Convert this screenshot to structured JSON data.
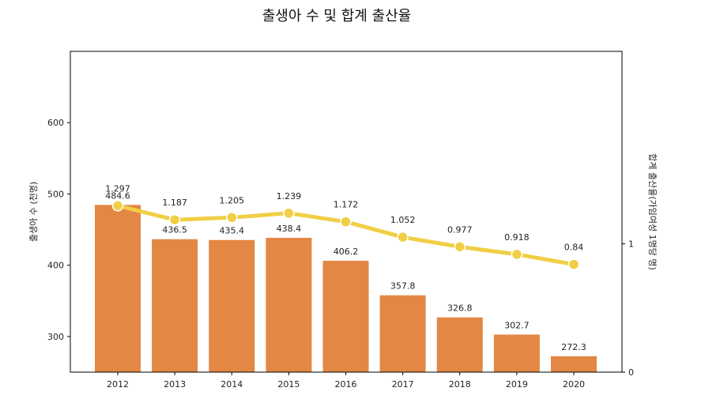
{
  "chart_data": {
    "type": "bar+line",
    "title": "출생아 수 및 합계 출산율",
    "categories": [
      "2012",
      "2013",
      "2014",
      "2015",
      "2016",
      "2017",
      "2018",
      "2019",
      "2020"
    ],
    "series": [
      {
        "name": "출생아 수",
        "type": "bar",
        "axis": "left",
        "values": [
          484.6,
          436.5,
          435.4,
          438.4,
          406.2,
          357.8,
          326.8,
          302.7,
          272.3
        ],
        "labels": [
          "484.6",
          "436.5",
          "435.4",
          "438.4",
          "406.2",
          "357.8",
          "326.8",
          "302.7",
          "272.3"
        ],
        "color": "#e38744"
      },
      {
        "name": "합계 출산율",
        "type": "line",
        "axis": "right",
        "values": [
          1.297,
          1.187,
          1.205,
          1.239,
          1.172,
          1.052,
          0.977,
          0.918,
          0.84
        ],
        "labels": [
          "1.297",
          "1.187",
          "1.205",
          "1.239",
          "1.172",
          "1.052",
          "0.977",
          "0.918",
          "0.84"
        ],
        "color": "#f0cf45"
      }
    ],
    "y_left": {
      "label": "출생아 수 (천명)",
      "range": [
        250,
        700
      ],
      "ticks": [
        300,
        400,
        500,
        600
      ],
      "tick_labels": [
        "300",
        "400",
        "500",
        "600"
      ]
    },
    "y_right": {
      "label": "합계 출산율(가임여성 1명당 명)",
      "range": [
        0,
        2.5
      ],
      "ticks": [
        0,
        1
      ],
      "tick_labels": [
        "0",
        "1"
      ]
    },
    "grid": false,
    "legend": "none"
  }
}
